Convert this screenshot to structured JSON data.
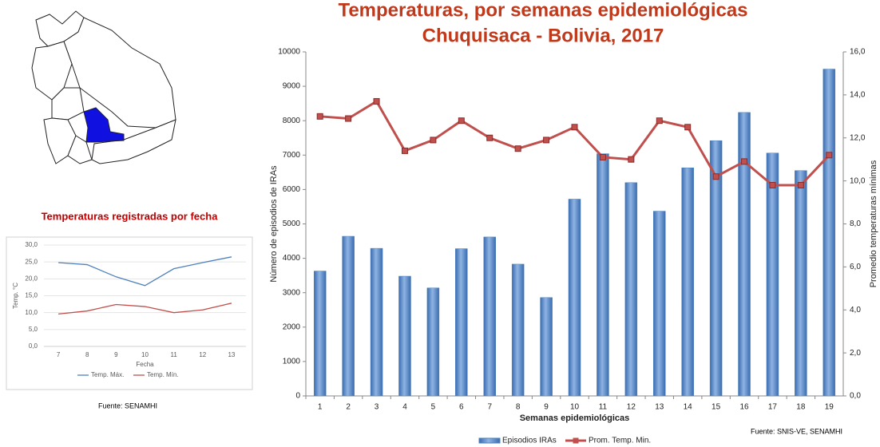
{
  "chart_data": [
    {
      "type": "line",
      "title": "Temperaturas registradas por fecha",
      "x_label": "Fecha",
      "y_label": "Temp. °C",
      "categories": [
        "7",
        "8",
        "9",
        "10",
        "11",
        "12",
        "13"
      ],
      "series": [
        {
          "name": "Temp. Máx.",
          "color": "#4f81bd",
          "values": [
            24.8,
            24.2,
            20.6,
            18.0,
            23.0,
            24.8,
            26.5
          ]
        },
        {
          "name": "Temp. Mín.",
          "color": "#c0504d",
          "values": [
            9.6,
            10.5,
            12.4,
            11.8,
            10.0,
            10.8,
            12.8
          ]
        }
      ],
      "ylim": [
        0,
        30
      ],
      "yticks": [
        {
          "value": 0,
          "label": "0,0"
        },
        {
          "value": 5,
          "label": "5,0"
        },
        {
          "value": 10,
          "label": "10,0"
        },
        {
          "value": 15,
          "label": "15,0"
        },
        {
          "value": 20,
          "label": "20,0"
        },
        {
          "value": 25,
          "label": "25,0"
        },
        {
          "value": 30,
          "label": "30,0"
        }
      ],
      "grid": true,
      "source": "Fuente: SENAMHI"
    },
    {
      "type": "bar",
      "title": "Temperaturas, por semanas epidemiológicas",
      "subtitle": "Chuquisaca - Bolivia, 2017",
      "x_label": "Semanas epidemiológicas",
      "y_label": "Número de episodios de IRAs",
      "y2_label": "Promedio temperaturas mínimas",
      "categories": [
        "1",
        "2",
        "3",
        "4",
        "5",
        "6",
        "7",
        "8",
        "9",
        "10",
        "11",
        "12",
        "13",
        "14",
        "15",
        "16",
        "17",
        "18",
        "19"
      ],
      "series": [
        {
          "name": "Episodios IRAs",
          "color": "#4f81bd",
          "values": [
            3630,
            4640,
            4290,
            3480,
            3140,
            4280,
            4620,
            3830,
            2860,
            5720,
            7040,
            6200,
            5370,
            6630,
            7420,
            8240,
            7060,
            6550,
            9500
          ]
        },
        {
          "name": "Prom. Temp. Min.",
          "color": "#c0504d",
          "type": "line",
          "axis": "y2",
          "values": [
            13.0,
            12.9,
            13.7,
            11.4,
            11.9,
            12.8,
            12.0,
            11.5,
            11.9,
            12.5,
            11.1,
            11.0,
            12.8,
            12.5,
            10.2,
            10.9,
            9.8,
            9.8,
            11.2
          ]
        }
      ],
      "ylim": [
        0,
        10000
      ],
      "yticks": [
        0,
        1000,
        2000,
        3000,
        4000,
        5000,
        6000,
        7000,
        8000,
        9000,
        10000
      ],
      "y2lim": [
        0,
        16
      ],
      "y2ticks": [
        {
          "value": 0,
          "label": "0,0"
        },
        {
          "value": 2,
          "label": "2,0"
        },
        {
          "value": 4,
          "label": "4,0"
        },
        {
          "value": 6,
          "label": "6,0"
        },
        {
          "value": 8,
          "label": "8,0"
        },
        {
          "value": 10,
          "label": "10,0"
        },
        {
          "value": 12,
          "label": "12,0"
        },
        {
          "value": 14,
          "label": "14,0"
        },
        {
          "value": 16,
          "label": "16,0"
        }
      ],
      "grid": false,
      "source": "Fuente: SNIS-VE, SENAMHI"
    }
  ]
}
